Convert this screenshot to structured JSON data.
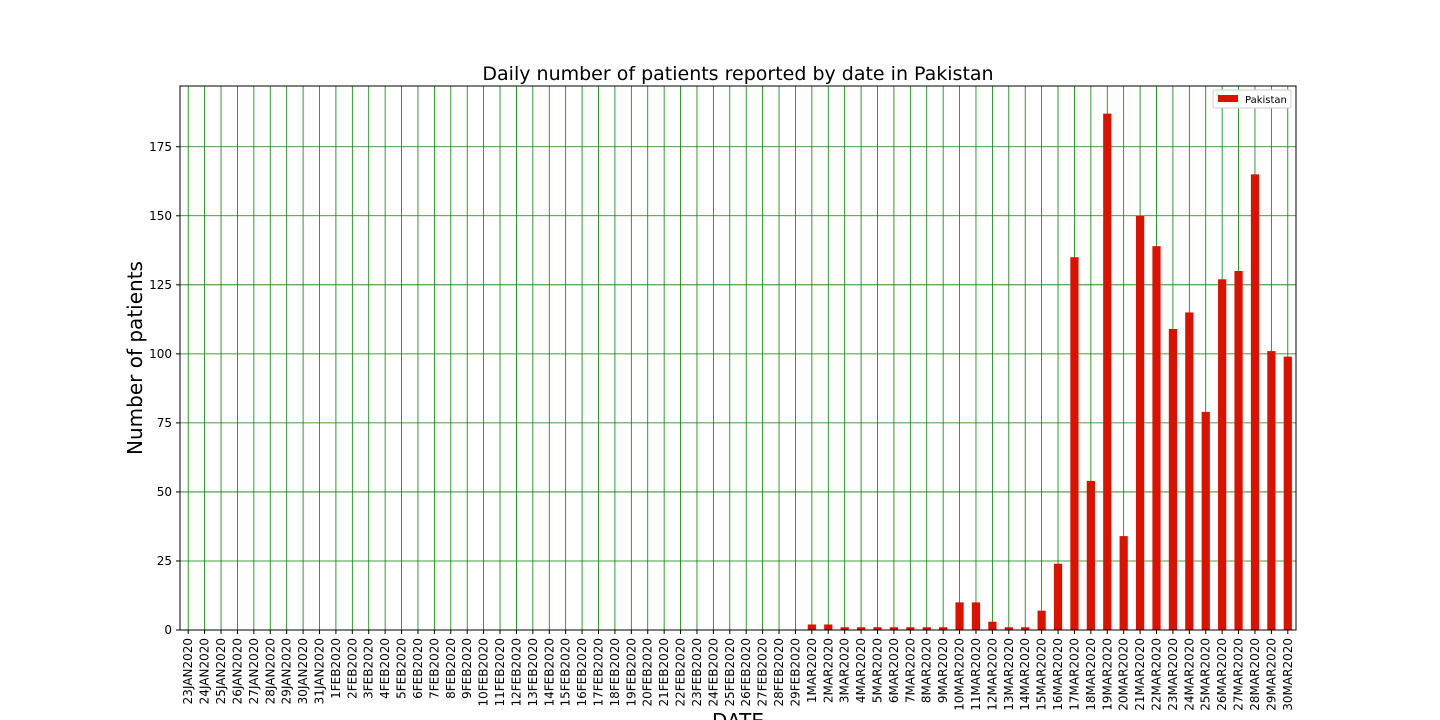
{
  "chart_data": {
    "type": "bar",
    "title": "Daily number of patients reported by date in Pakistan",
    "xlabel": "DATE",
    "ylabel": "Number of patients",
    "ylim": [
      0,
      197
    ],
    "yticks": [
      0,
      25,
      50,
      75,
      100,
      125,
      150,
      175
    ],
    "grid": true,
    "grid_color": "#008000",
    "bar_color": "#dd1100",
    "legend_position": "top-right",
    "categories": [
      "23JAN2020",
      "24JAN2020",
      "25JAN2020",
      "26JAN2020",
      "27JAN2020",
      "28JAN2020",
      "29JAN2020",
      "30JAN2020",
      "31JAN2020",
      "1FEB2020",
      "2FEB2020",
      "3FEB2020",
      "4FEB2020",
      "5FEB2020",
      "6FEB2020",
      "7FEB2020",
      "8FEB2020",
      "9FEB2020",
      "10FEB2020",
      "11FEB2020",
      "12FEB2020",
      "13FEB2020",
      "14FEB2020",
      "15FEB2020",
      "16FEB2020",
      "17FEB2020",
      "18FEB2020",
      "19FEB2020",
      "20FEB2020",
      "21FEB2020",
      "22FEB2020",
      "23FEB2020",
      "24FEB2020",
      "25FEB2020",
      "26FEB2020",
      "27FEB2020",
      "28FEB2020",
      "29FEB2020",
      "1MAR2020",
      "2MAR2020",
      "3MAR2020",
      "4MAR2020",
      "5MAR2020",
      "6MAR2020",
      "7MAR2020",
      "8MAR2020",
      "9MAR2020",
      "10MAR2020",
      "11MAR2020",
      "12MAR2020",
      "13MAR2020",
      "14MAR2020",
      "15MAR2020",
      "16MAR2020",
      "17MAR2020",
      "18MAR2020",
      "19MAR2020",
      "20MAR2020",
      "21MAR2020",
      "22MAR2020",
      "23MAR2020",
      "24MAR2020",
      "25MAR2020",
      "26MAR2020",
      "27MAR2020",
      "28MAR2020",
      "29MAR2020",
      "30MAR2020"
    ],
    "series": [
      {
        "name": "Pakistan",
        "values": [
          0,
          0,
          0,
          0,
          0,
          0,
          0,
          0,
          0,
          0,
          0,
          0,
          0,
          0,
          0,
          0,
          0,
          0,
          0,
          0,
          0,
          0,
          0,
          0,
          0,
          0,
          0,
          0,
          0,
          0,
          0,
          0,
          0,
          0,
          0,
          0,
          0,
          0,
          2,
          2,
          1,
          1,
          1,
          1,
          1,
          1,
          1,
          10,
          10,
          3,
          1,
          1,
          7,
          24,
          135,
          54,
          187,
          34,
          150,
          139,
          109,
          115,
          79,
          127,
          130,
          165,
          101,
          99
        ]
      }
    ]
  }
}
